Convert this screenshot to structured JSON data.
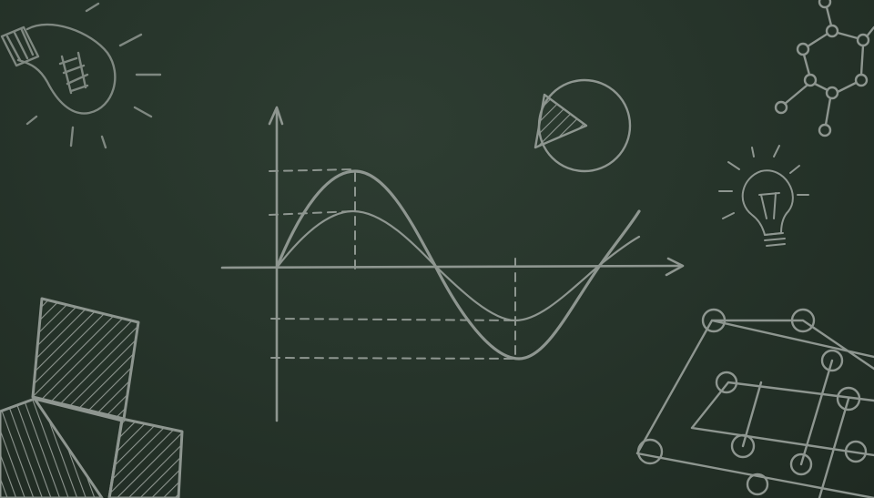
{
  "board": {
    "background_color": "#263329",
    "chalk_color": "#8e9690",
    "chalk_color_dim": "#6f7a72"
  },
  "illustrations": [
    "lightbulb-icon",
    "sine-wave-graph",
    "pie-chart-icon",
    "molecule-icon",
    "lightbulb-small-icon",
    "hatched-squares-icon",
    "network-grid-icon"
  ]
}
